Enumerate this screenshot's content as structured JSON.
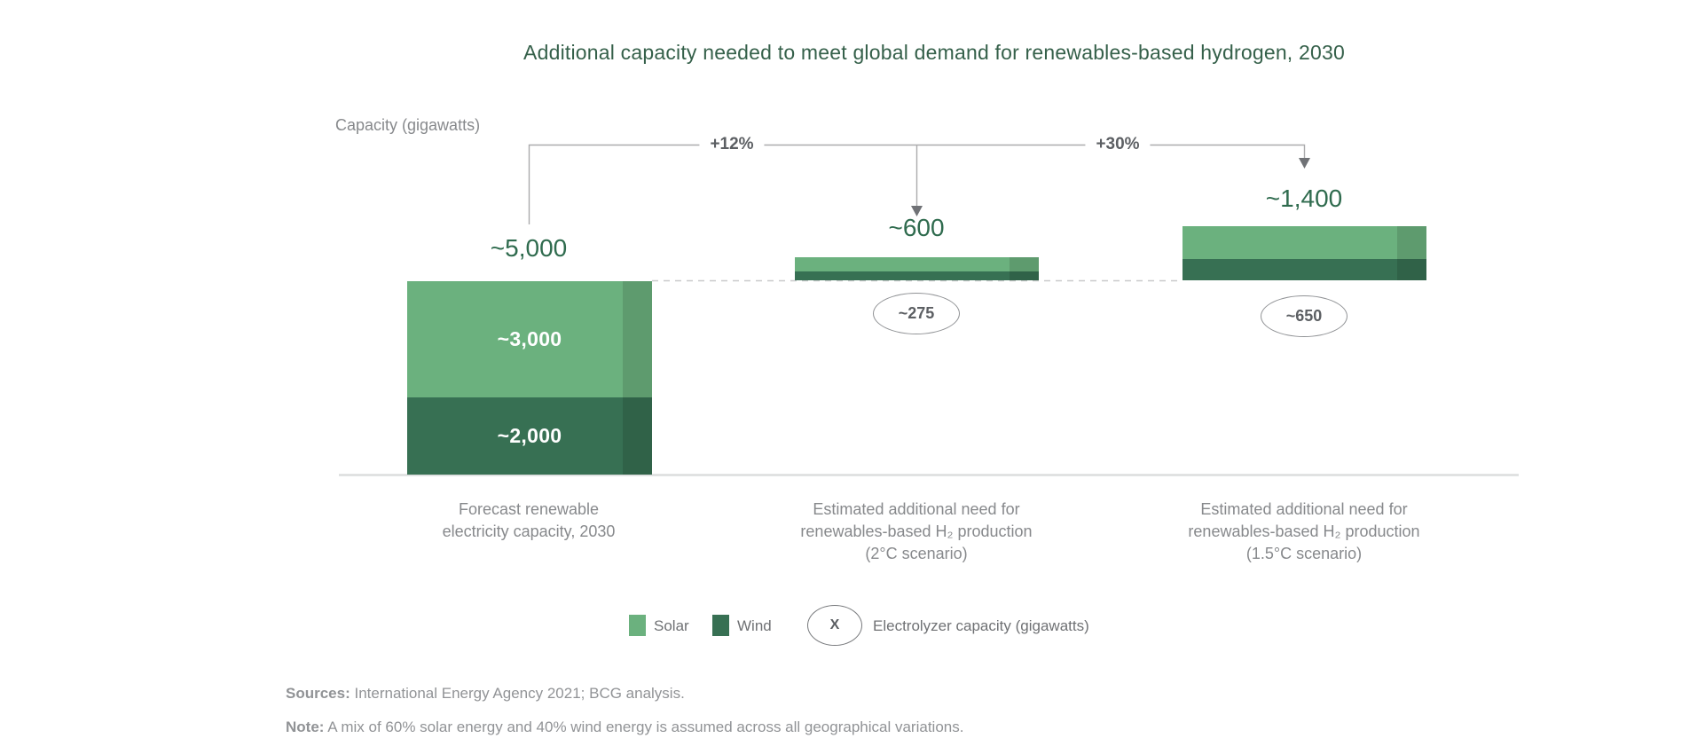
{
  "chart_data": {
    "type": "bar",
    "stacked": true,
    "title": "Additional capacity needed to meet global demand for renewables-based hydrogen, 2030",
    "ylabel": "Capacity (gigawatts)",
    "unit": "gigawatts",
    "ylim": [
      0,
      5000
    ],
    "grid": false,
    "legend_position": "bottom",
    "categories": [
      [
        "Forecast renewable",
        "electricity capacity, 2030"
      ],
      [
        "Estimated additional need for",
        "renewables-based H₂ production",
        "(2°C scenario)"
      ],
      [
        "Estimated additional need for",
        "renewables-based H₂ production",
        "(1.5°C scenario)"
      ]
    ],
    "series": [
      {
        "name": "Solar",
        "values": [
          3000,
          360,
          840
        ]
      },
      {
        "name": "Wind",
        "values": [
          2000,
          240,
          560
        ]
      }
    ],
    "totals": [
      5000,
      600,
      1400
    ],
    "total_labels": [
      "~5,000",
      "~600",
      "~1,400"
    ],
    "segment_labels": [
      [
        "~3,000",
        "~2,000"
      ],
      [
        "",
        ""
      ],
      [
        "",
        ""
      ]
    ],
    "growth_labels": [
      "+12%",
      "+30%"
    ],
    "electrolyzer_capacities": [
      275,
      650
    ],
    "electrolyzer_labels": [
      "~275",
      "~650"
    ]
  },
  "legend": {
    "solar_label": "Solar",
    "wind_label": "Wind",
    "electrolyzer_symbol": "X",
    "electrolyzer_label": "Electrolyzer capacity (gigawatts)"
  },
  "footer": {
    "sources_label": "Sources:",
    "sources_text": " International Energy Agency 2021; BCG analysis.",
    "note_label": "Note:",
    "note_text": " A mix of 60% solar energy and 40% wind energy is assumed across all geographical variations."
  },
  "colors": {
    "solar": "#6bb17e",
    "wind": "#377053",
    "title_green": "#35604a",
    "value_green": "#2f6b4e"
  }
}
